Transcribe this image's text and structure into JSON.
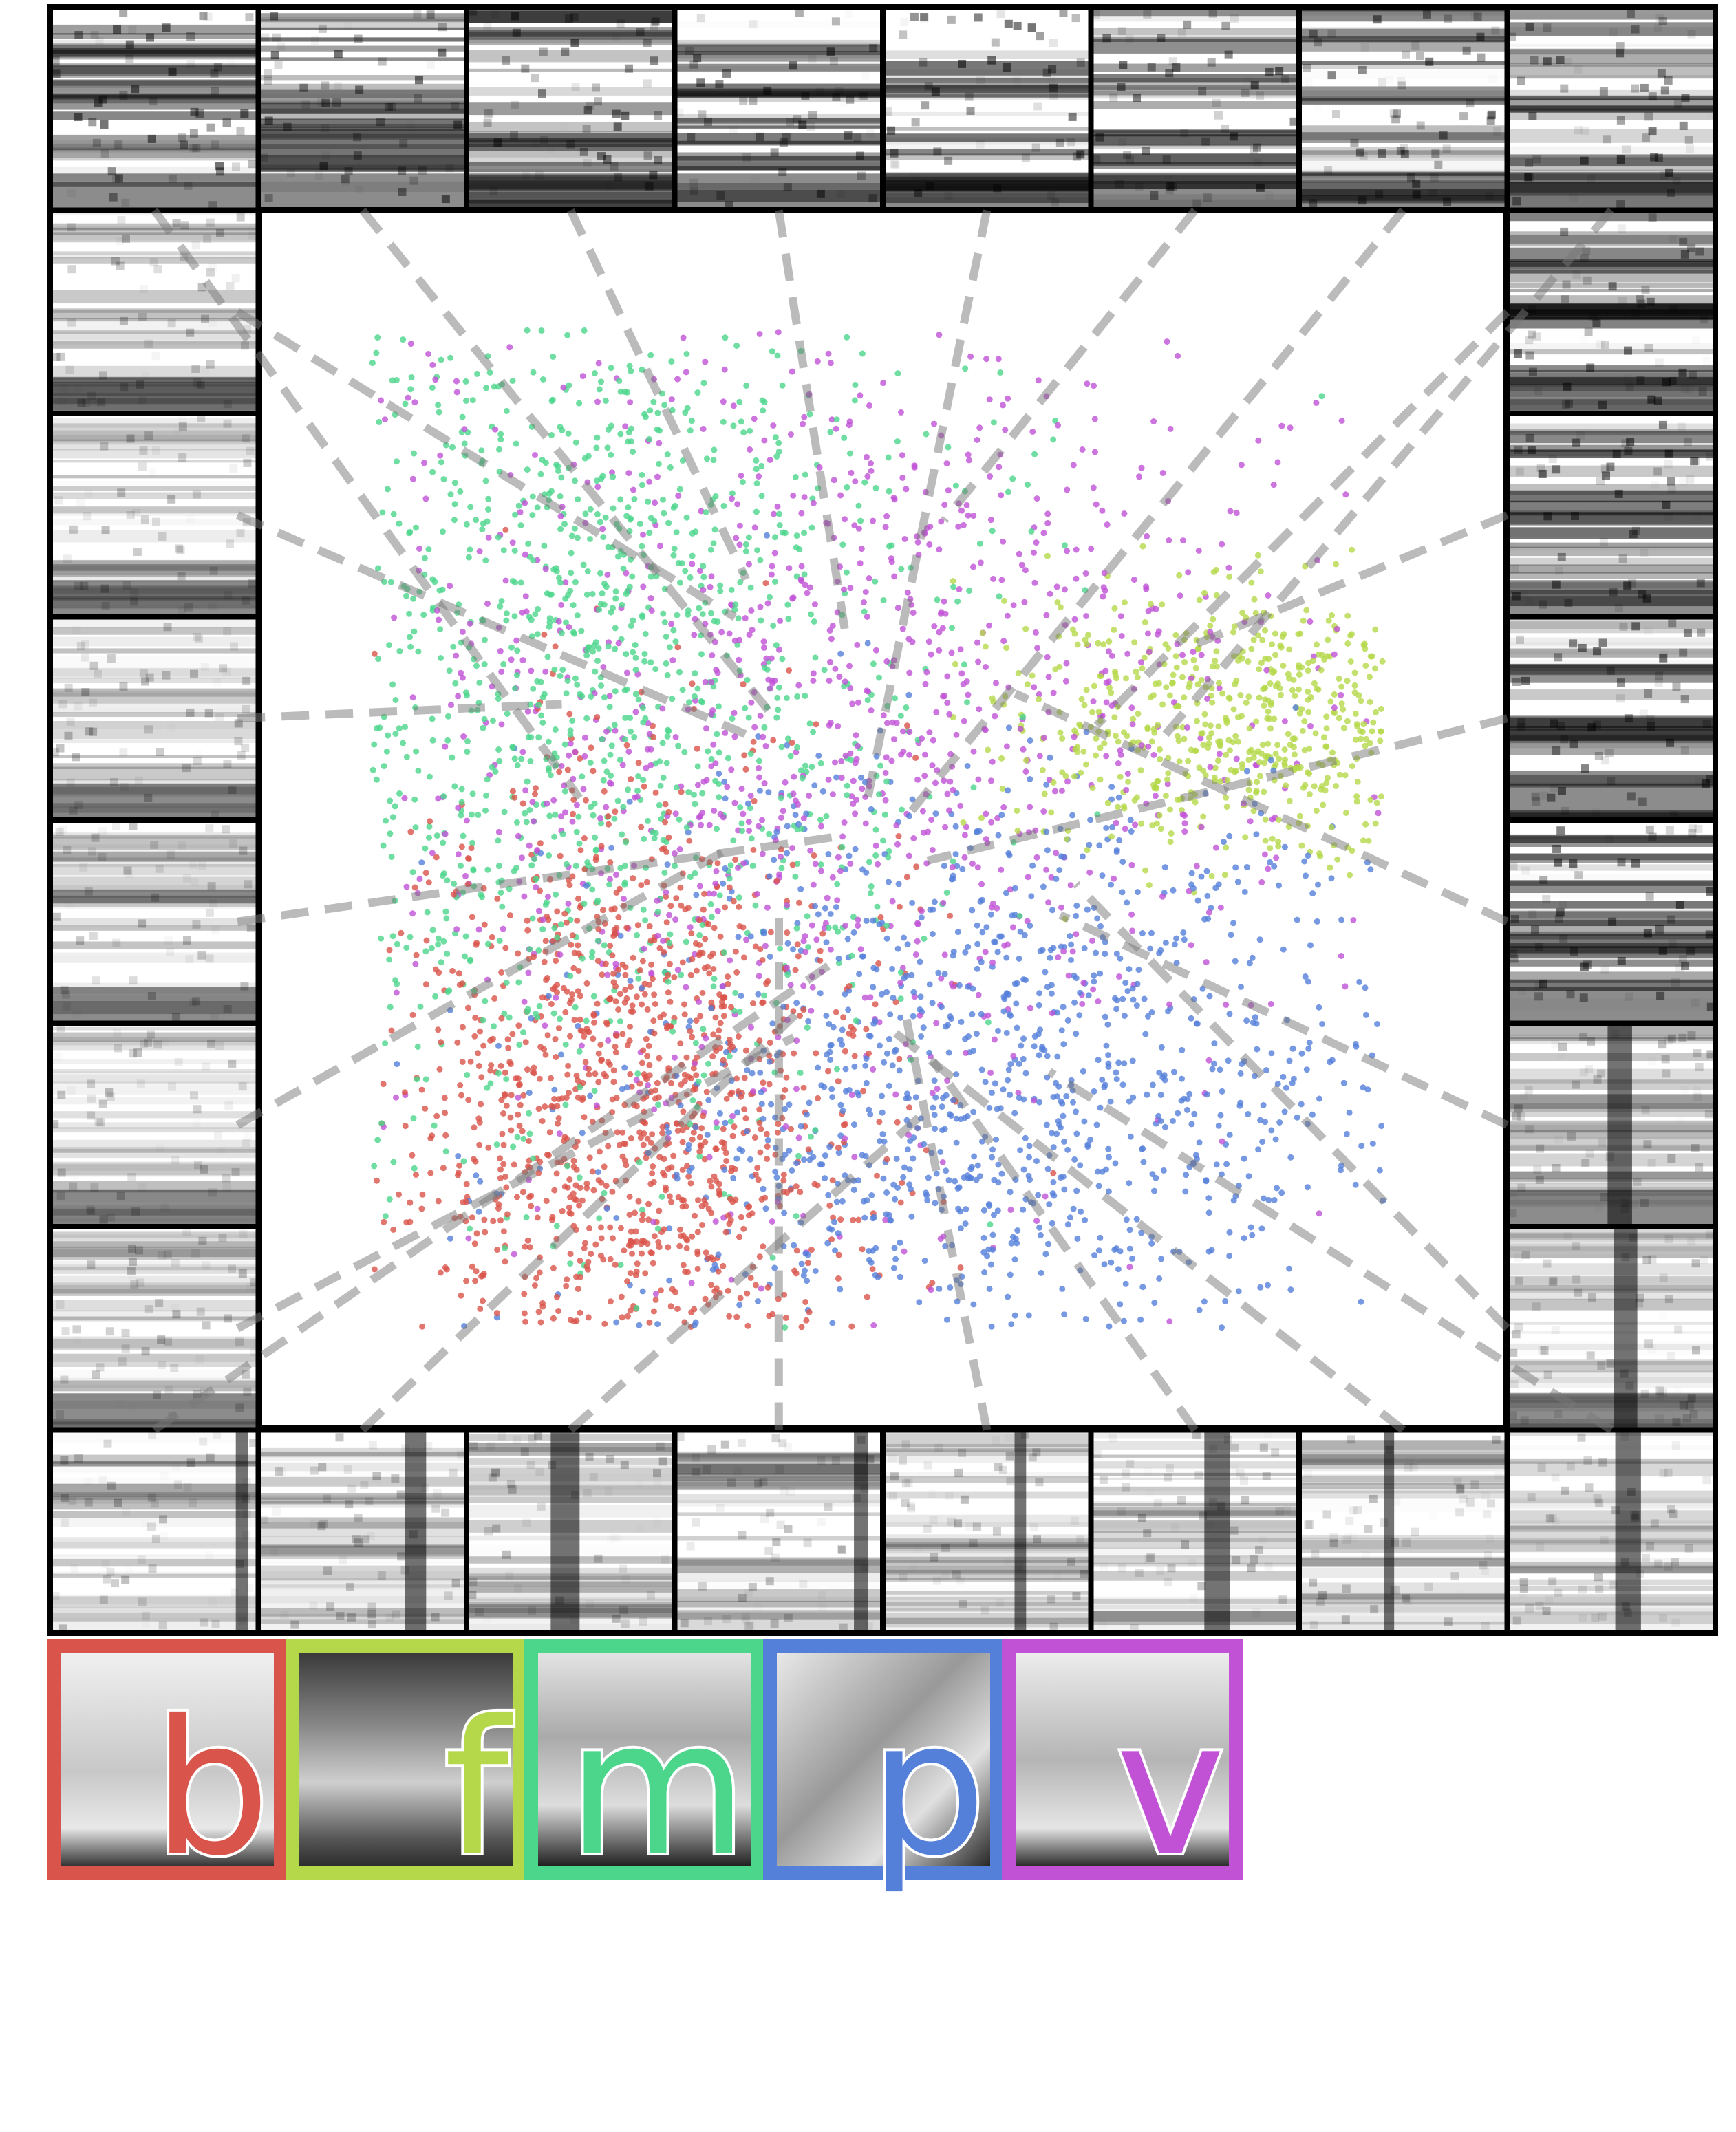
{
  "legend": [
    {
      "label": "b",
      "color": "#d9544a"
    },
    {
      "label": "f",
      "color": "#b5d84a"
    },
    {
      "label": "m",
      "color": "#4cd68c"
    },
    {
      "label": "p",
      "color": "#5580d9"
    },
    {
      "label": "v",
      "color": "#c152d6"
    }
  ]
}
